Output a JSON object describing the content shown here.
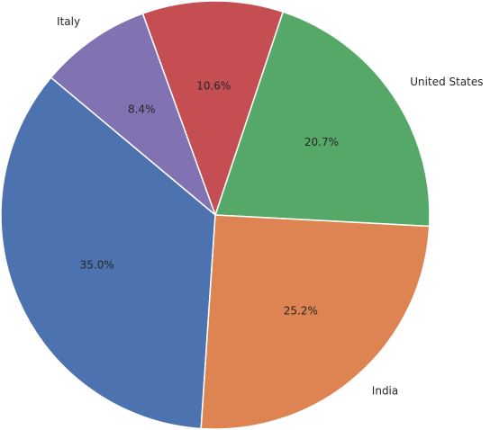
{
  "chart_data": {
    "type": "pie",
    "categories": [
      "United States",
      null,
      "Italy",
      null,
      "India"
    ],
    "values": [
      20.7,
      10.6,
      8.4,
      35.0,
      25.2
    ],
    "value_labels": [
      "20.7%",
      "10.6%",
      "8.4%",
      "35.0%",
      "25.2%"
    ],
    "colors": [
      "#55a868",
      "#c44e52",
      "#8172b2",
      "#4c72b0",
      "#dd8452"
    ]
  }
}
